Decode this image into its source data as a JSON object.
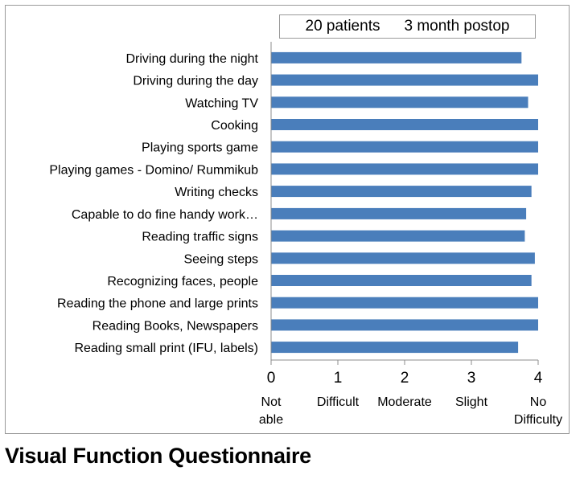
{
  "caption": "Visual Function Questionnaire",
  "legend": {
    "patients": "20 patients",
    "timepoint": "3 month postop"
  },
  "colors": {
    "bar": "#4a7ebb",
    "axis": "#8c8c8c",
    "frame": "#9a9a9a"
  },
  "chart_data": {
    "type": "bar",
    "orientation": "horizontal",
    "categories": [
      "Driving during the night",
      "Driving during the day",
      "Watching TV",
      "Cooking",
      "Playing sports game",
      "Playing games - Domino/ Rummikub",
      "Writing checks",
      "Capable to do fine handy work…",
      "Reading traffic signs",
      "Seeing steps",
      "Recognizing faces, people",
      "Reading the phone and large prints",
      "Reading Books, Newspapers",
      "Reading small print (IFU, labels)"
    ],
    "values": [
      3.75,
      4.0,
      3.85,
      4.0,
      4.0,
      4.0,
      3.9,
      3.82,
      3.8,
      3.95,
      3.9,
      4.0,
      4.0,
      3.7
    ],
    "xlim": [
      0,
      4
    ],
    "xticks": [
      "0",
      "1",
      "2",
      "3",
      "4"
    ],
    "tick_descriptions": [
      [
        "Not",
        "able"
      ],
      [
        "Difficult"
      ],
      [
        "Moderate"
      ],
      [
        "Slight"
      ],
      [
        "No",
        "Difficulty"
      ]
    ],
    "grid": false,
    "legend_position": "top-right"
  }
}
